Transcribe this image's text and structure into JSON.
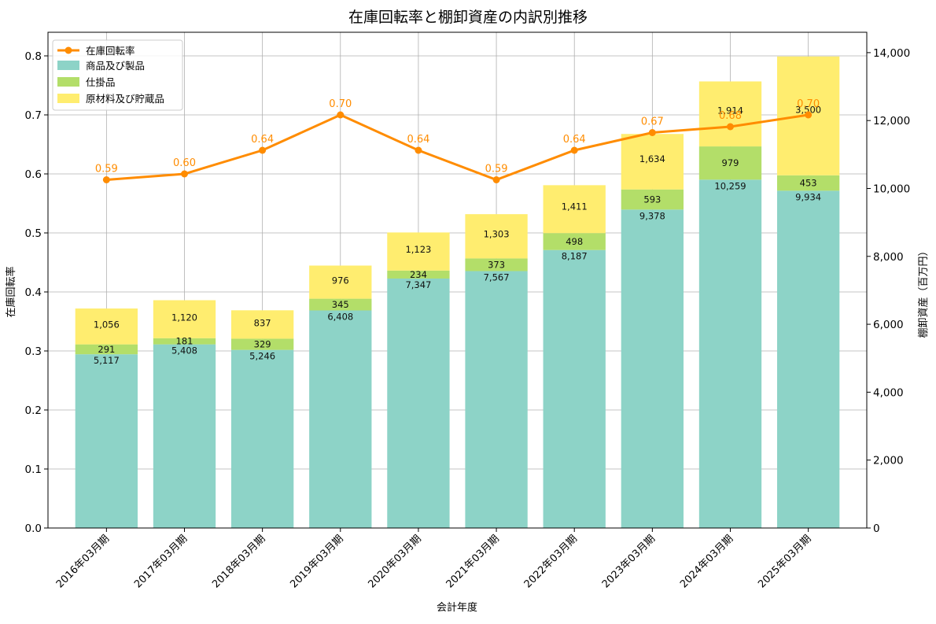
{
  "chart_data": {
    "type": "bar",
    "title": "在庫回転率と棚卸資産の内訳別推移",
    "xlabel": "会計年度",
    "ylabel_left": "在庫回転率",
    "ylabel_right": "棚卸資産（百万円）",
    "categories": [
      "2016年03月期",
      "2017年03月期",
      "2018年03月期",
      "2019年03月期",
      "2020年03月期",
      "2021年03月期",
      "2022年03月期",
      "2023年03月期",
      "2024年03月期",
      "2025年03月期"
    ],
    "stacked_series": [
      {
        "name": "商品及び製品",
        "color": "#8dd3c7",
        "values": [
          5117,
          5408,
          5246,
          6408,
          7347,
          7567,
          8187,
          9378,
          10259,
          9934
        ]
      },
      {
        "name": "仕掛品",
        "color": "#b3de69",
        "values": [
          291,
          181,
          329,
          345,
          234,
          373,
          498,
          593,
          979,
          453
        ]
      },
      {
        "name": "原材料及び貯蔵品",
        "color": "#ffed6f",
        "values": [
          1056,
          1120,
          837,
          976,
          1123,
          1303,
          1411,
          1634,
          1914,
          3500
        ]
      }
    ],
    "bar_value_labels": [
      [
        "5,117",
        "5,408",
        "5,246",
        "6,408",
        "7,347",
        "7,567",
        "8,187",
        "9,378",
        "10,259",
        "9,934"
      ],
      [
        "291",
        "181",
        "329",
        "345",
        "234",
        "373",
        "498",
        "593",
        "979",
        "453"
      ],
      [
        "1,056",
        "1,120",
        "837",
        "976",
        "1,123",
        "1,303",
        "1,411",
        "1,634",
        "1,914",
        "3,500"
      ]
    ],
    "line_series": {
      "name": "在庫回転率",
      "color": "#ff8c00",
      "values": [
        0.59,
        0.6,
        0.64,
        0.7,
        0.64,
        0.59,
        0.64,
        0.67,
        0.68,
        0.7
      ],
      "labels": [
        "0.59",
        "0.60",
        "0.64",
        "0.70",
        "0.64",
        "0.59",
        "0.64",
        "0.67",
        "0.68",
        "0.70"
      ]
    },
    "ylim_left": [
      0,
      0.84
    ],
    "ylim_right": [
      0,
      14600
    ],
    "yticks_left": [
      "0.0",
      "0.1",
      "0.2",
      "0.3",
      "0.4",
      "0.5",
      "0.6",
      "0.7",
      "0.8"
    ],
    "yticks_left_values": [
      0,
      0.1,
      0.2,
      0.3,
      0.4,
      0.5,
      0.6,
      0.7,
      0.8
    ],
    "yticks_right": [
      "0",
      "2,000",
      "4,000",
      "6,000",
      "8,000",
      "10,000",
      "12,000",
      "14,000"
    ],
    "yticks_right_values": [
      0,
      2000,
      4000,
      6000,
      8000,
      10000,
      12000,
      14000
    ],
    "grid": true,
    "legend_placement": "top-left"
  }
}
